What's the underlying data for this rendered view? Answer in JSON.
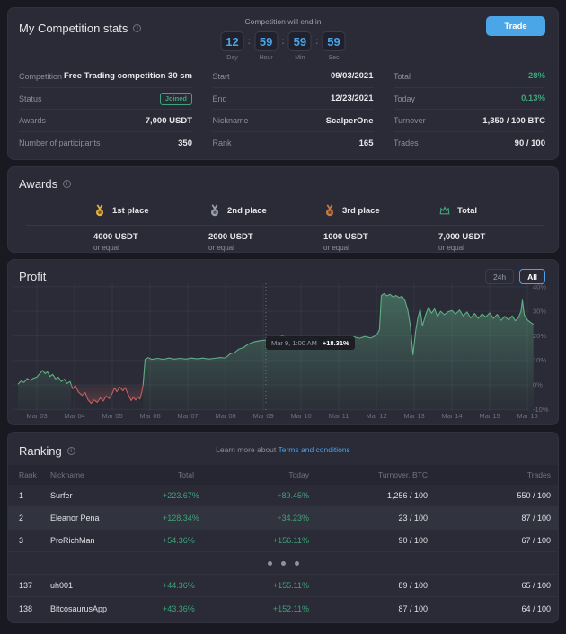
{
  "stats": {
    "title": "My Competition stats",
    "trade_button": "Trade",
    "countdown": {
      "title": "Competition will end in",
      "units": [
        {
          "value": "12",
          "label": "Day"
        },
        {
          "value": "59",
          "label": "Hour"
        },
        {
          "value": "59",
          "label": "Min"
        },
        {
          "value": "59",
          "label": "Sec"
        }
      ]
    },
    "columns": [
      {
        "rows": [
          {
            "label": "Competition",
            "value": "Free Trading competition 30 sm"
          },
          {
            "label": "Status",
            "value": "Joined",
            "badge": true
          },
          {
            "label": "Awards",
            "value": "7,000 USDT"
          },
          {
            "label": "Number of participants",
            "value": "350"
          }
        ]
      },
      {
        "rows": [
          {
            "label": "Start",
            "value": "09/03/2021"
          },
          {
            "label": "End",
            "value": "12/23/2021"
          },
          {
            "label": "Nickname",
            "value": "ScalperOne"
          },
          {
            "label": "Rank",
            "value": "165"
          }
        ]
      },
      {
        "rows": [
          {
            "label": "Total",
            "value": "28%",
            "green": true
          },
          {
            "label": "Today",
            "value": "0.13%",
            "green": true
          },
          {
            "label": "Turnover",
            "value": "1,350 / 100 BTC"
          },
          {
            "label": "Trades",
            "value": "90 / 100"
          }
        ]
      }
    ]
  },
  "awards": {
    "title": "Awards",
    "items": [
      {
        "icon": "medal-gold",
        "color": "#e9b13b",
        "label": "1st place",
        "amount": "4000 USDT",
        "note": "or equal"
      },
      {
        "icon": "medal-silver",
        "color": "#9aa0ad",
        "label": "2nd place",
        "amount": "2000 USDT",
        "note": "or equal"
      },
      {
        "icon": "medal-bronze",
        "color": "#cc7a3d",
        "label": "3rd place",
        "amount": "1000 USDT",
        "note": "or equal"
      },
      {
        "icon": "crown",
        "color": "#3fa47c",
        "label": "Total",
        "amount": "7,000 USDT",
        "note": "or equal"
      }
    ]
  },
  "profit": {
    "title": "Profit",
    "range_buttons": [
      {
        "label": "24h",
        "active": false
      },
      {
        "label": "All",
        "active": true
      }
    ],
    "tooltip": {
      "time": "Mar 9, 1:00 AM",
      "value": "+18.31%"
    },
    "chart_data": {
      "type": "area",
      "title": "Profit",
      "unit": "%",
      "grid": true,
      "x_labels": [
        "Mar 03",
        "Mar 04",
        "Mar 05",
        "Mar 06",
        "Mar 07",
        "Mar 08",
        "Mar 09",
        "Mar 10",
        "Mar 11",
        "Mar 12",
        "Mar 13",
        "Mar 14",
        "Mar 15",
        "Mar 16"
      ],
      "y_ticks": [
        40,
        30,
        20,
        10,
        0,
        -10
      ],
      "ylim": [
        -12,
        42
      ],
      "colors": {
        "positive": "#5fae84",
        "negative": "#c2605e"
      },
      "cursor": {
        "x_day": 6.07,
        "label": "Mar 9, 1:00 AM",
        "value": 18.31,
        "value_label": "+18.31%"
      },
      "series": [
        {
          "name": "Profit %",
          "points": [
            [
              -0.5,
              0.3
            ],
            [
              -0.42,
              1.6
            ],
            [
              -0.34,
              1.0
            ],
            [
              -0.26,
              2.6
            ],
            [
              -0.18,
              1.9
            ],
            [
              -0.1,
              2.6
            ],
            [
              0,
              3.2
            ],
            [
              0.08,
              4.6
            ],
            [
              0.15,
              5.9
            ],
            [
              0.22,
              4.6
            ],
            [
              0.28,
              5.3
            ],
            [
              0.35,
              3.4
            ],
            [
              0.42,
              4.3
            ],
            [
              0.5,
              2.4
            ],
            [
              0.57,
              3.1
            ],
            [
              0.65,
              1.4
            ],
            [
              0.73,
              2.3
            ],
            [
              0.8,
              0.6
            ],
            [
              0.88,
              1.4
            ],
            [
              0.95,
              -1.6
            ],
            [
              1.02,
              -0.3
            ],
            [
              1.1,
              -2.9
            ],
            [
              1.2,
              -4.3
            ],
            [
              1.28,
              -3.1
            ],
            [
              1.36,
              -6.2
            ],
            [
              1.44,
              -7.5
            ],
            [
              1.52,
              -6.1
            ],
            [
              1.6,
              -7.1
            ],
            [
              1.68,
              -5.3
            ],
            [
              1.76,
              -6.6
            ],
            [
              1.84,
              -4.5
            ],
            [
              1.92,
              -5.6
            ],
            [
              2.0,
              -3.4
            ],
            [
              2.06,
              -1.2
            ],
            [
              2.12,
              -2.8
            ],
            [
              2.2,
              -0.9
            ],
            [
              2.28,
              -2.4
            ],
            [
              2.34,
              -1.1
            ],
            [
              2.42,
              -3.9
            ],
            [
              2.5,
              -6.4
            ],
            [
              2.56,
              -5.1
            ],
            [
              2.62,
              -6.2
            ],
            [
              2.68,
              -4.9
            ],
            [
              2.73,
              -5.8
            ],
            [
              2.78,
              -3.0
            ],
            [
              2.82,
              0.5
            ],
            [
              2.87,
              10.4
            ],
            [
              2.95,
              11.1
            ],
            [
              3.05,
              10.4
            ],
            [
              3.2,
              10.8
            ],
            [
              3.35,
              10.4
            ],
            [
              3.5,
              10.9
            ],
            [
              3.65,
              10.5
            ],
            [
              3.8,
              10.8
            ],
            [
              3.95,
              10.5
            ],
            [
              4.1,
              10.9
            ],
            [
              4.25,
              10.6
            ],
            [
              4.4,
              10.9
            ],
            [
              4.55,
              10.5
            ],
            [
              4.7,
              10.8
            ],
            [
              4.85,
              11.1
            ],
            [
              5.0,
              11.0
            ],
            [
              5.12,
              12.6
            ],
            [
              5.24,
              13.2
            ],
            [
              5.36,
              14.6
            ],
            [
              5.48,
              15.2
            ],
            [
              5.6,
              16.6
            ],
            [
              5.75,
              17.5
            ],
            [
              5.9,
              18.0
            ],
            [
              6.07,
              18.31
            ],
            [
              6.2,
              19.5
            ],
            [
              6.35,
              19.1
            ],
            [
              6.5,
              19.8
            ],
            [
              6.65,
              19.3
            ],
            [
              6.8,
              18.9
            ],
            [
              6.95,
              19.4
            ],
            [
              7.1,
              18.7
            ],
            [
              7.25,
              19.3
            ],
            [
              7.4,
              18.8
            ],
            [
              7.52,
              16.9
            ],
            [
              7.65,
              18.5
            ],
            [
              7.8,
              19.1
            ],
            [
              7.95,
              18.8
            ],
            [
              8.1,
              19.4
            ],
            [
              8.25,
              18.9
            ],
            [
              8.4,
              19.6
            ],
            [
              8.55,
              19.0
            ],
            [
              8.7,
              19.7
            ],
            [
              8.85,
              19.1
            ],
            [
              8.95,
              19.8
            ],
            [
              9.02,
              20.6
            ],
            [
              9.08,
              22.5
            ],
            [
              9.13,
              36.4
            ],
            [
              9.2,
              37.2
            ],
            [
              9.28,
              36.3
            ],
            [
              9.36,
              36.9
            ],
            [
              9.44,
              35.9
            ],
            [
              9.52,
              36.4
            ],
            [
              9.6,
              35.6
            ],
            [
              9.68,
              36.1
            ],
            [
              9.76,
              34.2
            ],
            [
              9.83,
              30.5
            ],
            [
              9.9,
              24.0
            ],
            [
              9.97,
              12.3
            ],
            [
              10.04,
              22.0
            ],
            [
              10.1,
              27.5
            ],
            [
              10.16,
              30.8
            ],
            [
              10.22,
              24.0
            ],
            [
              10.3,
              28.4
            ],
            [
              10.38,
              31.6
            ],
            [
              10.46,
              29.2
            ],
            [
              10.54,
              31.0
            ],
            [
              10.62,
              27.8
            ],
            [
              10.7,
              30.0
            ],
            [
              10.8,
              28.6
            ],
            [
              10.9,
              29.8
            ],
            [
              11.0,
              30.3
            ],
            [
              11.1,
              28.9
            ],
            [
              11.2,
              30.5
            ],
            [
              11.3,
              28.1
            ],
            [
              11.4,
              29.7
            ],
            [
              11.5,
              27.3
            ],
            [
              11.6,
              29.1
            ],
            [
              11.7,
              27.1
            ],
            [
              11.8,
              28.9
            ],
            [
              11.9,
              27.7
            ],
            [
              12.0,
              29.3
            ],
            [
              12.1,
              27.1
            ],
            [
              12.2,
              28.7
            ],
            [
              12.3,
              26.3
            ],
            [
              12.4,
              27.9
            ],
            [
              12.5,
              26.5
            ],
            [
              12.6,
              28.1
            ],
            [
              12.68,
              26.1
            ],
            [
              12.76,
              27.3
            ],
            [
              12.83,
              30.0
            ],
            [
              12.87,
              34.5
            ],
            [
              12.92,
              28.5
            ],
            [
              13.0,
              26.5
            ],
            [
              13.08,
              25.5
            ],
            [
              13.16,
              24.7
            ]
          ]
        }
      ]
    }
  },
  "ranking": {
    "title": "Ranking",
    "learn_more": {
      "prefix": "Learn more about ",
      "link": "Terms and conditions"
    },
    "columns": [
      "Rank",
      "Nickname",
      "Total",
      "Today",
      "Turnover, BTC",
      "Trades"
    ],
    "rows": [
      {
        "rank": "1",
        "nickname": "Surfer",
        "total": "+223.67%",
        "today": "+89.45%",
        "turnover": "1,256 / 100",
        "trades": "550 / 100"
      },
      {
        "rank": "2",
        "nickname": "Eleanor Pena",
        "total": "+128.34%",
        "today": "+34.23%",
        "turnover": "23 / 100",
        "trades": "87 / 100",
        "highlight": true
      },
      {
        "rank": "3",
        "nickname": "ProRichMan",
        "total": "+54.36%",
        "today": "+156.11%",
        "turnover": "90 / 100",
        "trades": "67 / 100"
      },
      {
        "rank": "137",
        "nickname": "uh001",
        "total": "+44.36%",
        "today": "+155.11%",
        "turnover": "89 / 100",
        "trades": "65 / 100"
      },
      {
        "rank": "138",
        "nickname": "BitcosaurusApp",
        "total": "+43.36%",
        "today": "+152.11%",
        "turnover": "87 / 100",
        "trades": "64 / 100"
      }
    ],
    "dots_after_row": 3,
    "ellipsis_dots": 3
  },
  "theme": {
    "page_bg": "#191a21",
    "card_bg": "#2a2b36",
    "accent_blue": "#4aa3e8",
    "green": "#3fa47c",
    "red": "#c2605e"
  }
}
